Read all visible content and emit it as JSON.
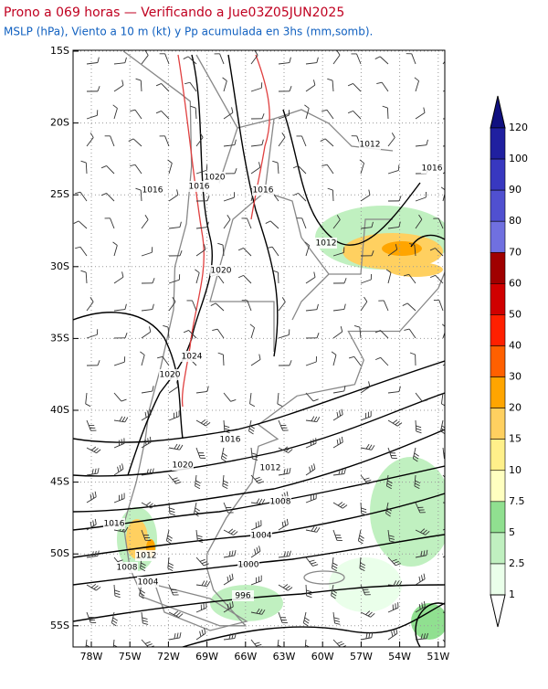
{
  "title": "Prono a 069 horas — Verificando a Jue03Z05JUN2025",
  "subtitle": "MSLP (hPa), Viento a 10 m (kt) y Pp acumulada en 3hs (mm,somb).",
  "lat_labels": [
    "15S",
    "20S",
    "25S",
    "30S",
    "35S",
    "40S",
    "45S",
    "50S",
    "55S"
  ],
  "lon_labels": [
    "78W",
    "75W",
    "72W",
    "69W",
    "66W",
    "63W",
    "60W",
    "57W",
    "54W",
    "51W"
  ],
  "colorbar": {
    "labels": [
      120,
      100,
      90,
      80,
      70,
      60,
      50,
      40,
      30,
      20,
      15,
      10,
      7.5,
      5,
      2.5,
      1
    ],
    "colors": [
      "#2020a0",
      "#3838c0",
      "#5050d0",
      "#7070e0",
      "#a00000",
      "#d00000",
      "#ff2000",
      "#ff6000",
      "#ffa500",
      "#ffd060",
      "#fff08a",
      "#ffffc0",
      "#90e090",
      "#c0f0c0",
      "#eaffea"
    ],
    "over_color": "#101080",
    "under_color": "#ffffff"
  },
  "isobar_labels": [
    "1012",
    "1016",
    "1016",
    "1020",
    "1016",
    "1016",
    "1012",
    "1020",
    "1024",
    "1020",
    "1016",
    "1020",
    "1012",
    "1008",
    "1016",
    "1004",
    "1012",
    "1008",
    "1004",
    "1000",
    "996"
  ]
}
